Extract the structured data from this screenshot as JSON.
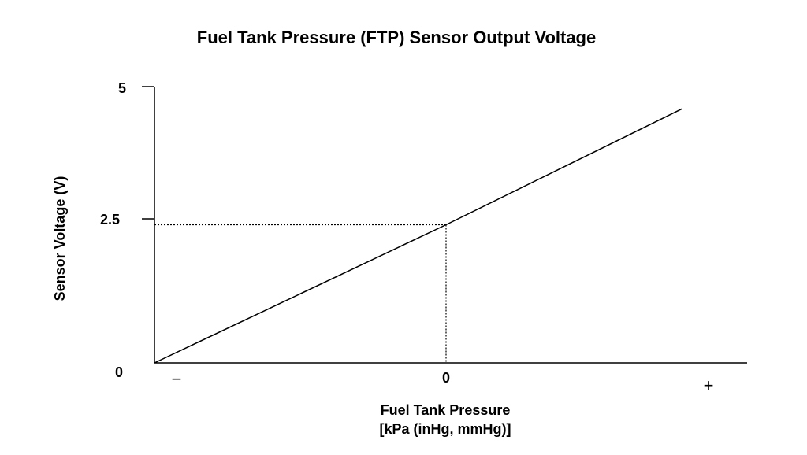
{
  "chart_data": {
    "type": "line",
    "title": "Fuel Tank Pressure (FTP) Sensor Output Voltage",
    "xlabel": "Fuel Tank Pressure",
    "xlabel_units": "[kPa (inHg, mmHg)]",
    "ylabel": "Sensor Voltage (V)",
    "ylim": [
      0,
      5
    ],
    "yticks": [
      "0",
      "2.5",
      "5"
    ],
    "xticks": [
      "−",
      "0",
      "+"
    ],
    "x_center_label": "0",
    "series": [
      {
        "values": [
          {
            "x": -1.0,
            "y": 0
          },
          {
            "x": 0,
            "y": 2.5
          },
          {
            "x": 0.81,
            "y": 4.6
          }
        ]
      }
    ],
    "reference": {
      "x": 0,
      "y": 2.5,
      "style": "dotted"
    },
    "grid": false
  }
}
